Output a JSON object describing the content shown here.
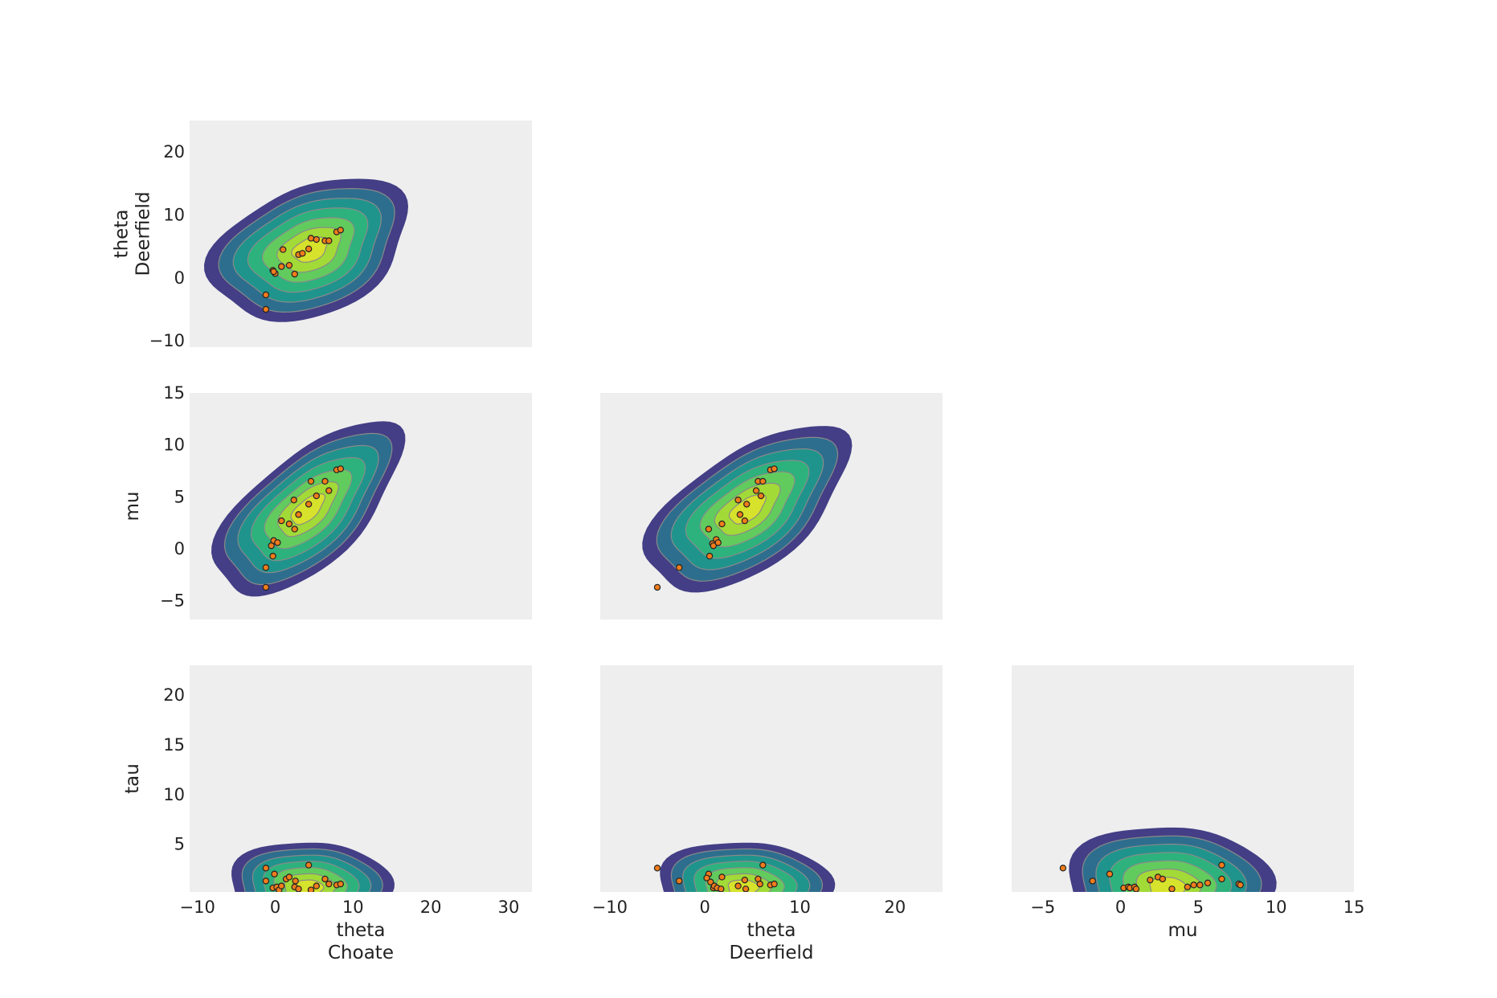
{
  "figure": {
    "background": "#ffffff",
    "panel_background": "#eeeeee",
    "point_color": "#f07c1b",
    "point_edge": "#222222",
    "contour_levels": [
      "#433e85",
      "#2d6e8e",
      "#1f948c",
      "#2db27d",
      "#62cb5e",
      "#a2da37",
      "#d6e22b"
    ],
    "contour_line_color": "#8a8a8a"
  },
  "chart_data": [
    {
      "type": "scatter",
      "panel": "theta Choate vs theta Deerfield",
      "xlabel": [
        "",
        ""
      ],
      "ylabel": [
        "theta",
        "Deerfield"
      ],
      "xlim": [
        -11,
        33
      ],
      "ylim": [
        -11,
        25
      ],
      "xticks": [],
      "yticks": [
        -10,
        0,
        10,
        20
      ],
      "ytick_labels": [
        "−10",
        "0",
        "10",
        "20"
      ],
      "kde": {
        "cx": 4.5,
        "cy": 4.5,
        "sx": 7.5,
        "sy": 6.2,
        "rot": 0.62,
        "sxMul": 0.72,
        "syMul": 0.6
      },
      "x": [
        -1.2,
        -1.2,
        -0.3,
        0.0,
        0.8,
        1.0,
        1.8,
        2.5,
        3.0,
        3.5,
        4.3,
        4.6,
        5.3,
        6.4,
        6.9,
        7.9,
        8.4,
        -0.2
      ],
      "y": [
        -5.0,
        -2.7,
        1.2,
        0.7,
        1.8,
        4.5,
        2.0,
        0.6,
        3.7,
        3.9,
        4.6,
        6.3,
        6.1,
        5.9,
        5.9,
        7.3,
        7.6,
        1.0
      ]
    },
    {
      "type": "scatter",
      "panel": "theta Choate vs mu",
      "xlabel": [
        "",
        ""
      ],
      "ylabel": [
        "mu",
        ""
      ],
      "xlim": [
        -11,
        33
      ],
      "ylim": [
        -6.8,
        15
      ],
      "xticks": [],
      "yticks": [
        -5,
        0,
        5,
        10,
        15
      ],
      "ytick_labels": [
        "−5",
        "0",
        "5",
        "10",
        "15"
      ],
      "kde": {
        "cx": 4.2,
        "cy": 3.8,
        "sx": 7.2,
        "sy": 4.0,
        "rot": 0.52,
        "sxMul": 0.72,
        "syMul": 0.55
      },
      "x": [
        -1.2,
        -1.2,
        -0.3,
        -0.5,
        -0.2,
        0.3,
        0.8,
        1.8,
        2.5,
        2.4,
        3.0,
        4.3,
        4.6,
        5.3,
        6.4,
        6.9,
        7.9,
        8.4
      ],
      "y": [
        -3.7,
        -1.8,
        -0.7,
        0.3,
        0.8,
        0.6,
        2.7,
        2.4,
        1.9,
        4.7,
        3.3,
        4.3,
        6.5,
        5.1,
        6.5,
        5.6,
        7.6,
        7.7
      ]
    },
    {
      "type": "scatter",
      "panel": "theta Deerfield vs mu",
      "xlabel": [
        "",
        ""
      ],
      "ylabel": [
        "",
        ""
      ],
      "xlim": [
        -11,
        25
      ],
      "ylim": [
        -6.8,
        15
      ],
      "xticks": [],
      "yticks": [],
      "ytick_labels": [],
      "kde": {
        "cx": 4.5,
        "cy": 3.8,
        "sx": 6.4,
        "sy": 4.0,
        "rot": 0.55,
        "sxMul": 0.72,
        "syMul": 0.55
      },
      "x": [
        -5.0,
        -2.7,
        0.5,
        0.4,
        0.8,
        0.9,
        1.2,
        1.4,
        1.8,
        3.5,
        3.7,
        4.2,
        4.4,
        5.4,
        5.6,
        5.9,
        6.1,
        6.9,
        7.3
      ],
      "y": [
        -3.7,
        -1.8,
        -0.7,
        1.9,
        0.5,
        0.3,
        0.9,
        0.6,
        2.4,
        4.7,
        3.3,
        2.7,
        4.3,
        5.6,
        6.5,
        5.1,
        6.5,
        7.6,
        7.7
      ]
    },
    {
      "type": "scatter",
      "panel": "theta Choate vs tau",
      "xlabel": [
        "theta",
        "Choate"
      ],
      "ylabel": [
        "tau",
        ""
      ],
      "xlim": [
        -11,
        33
      ],
      "ylim": [
        0.2,
        23
      ],
      "xticks": [
        -10,
        0,
        10,
        20,
        30
      ],
      "xtick_labels": [
        "−10",
        "0",
        "10",
        "20",
        "30"
      ],
      "yticks": [
        5,
        10,
        15,
        20
      ],
      "ytick_labels": [
        "5",
        "10",
        "15",
        "20"
      ],
      "kde": {
        "cx": 4.3,
        "cy": 0.6,
        "sx": 6.6,
        "sy": 2.7,
        "rot": 0.0,
        "sxMul": 0.6,
        "syMul": 0.68
      },
      "x": [
        -1.2,
        -1.2,
        -0.3,
        -0.1,
        0.2,
        0.5,
        0.8,
        1.4,
        1.8,
        2.5,
        2.6,
        3.0,
        4.3,
        4.6,
        5.3,
        6.4,
        6.9,
        7.9,
        8.4
      ],
      "y": [
        2.6,
        1.3,
        0.6,
        2.0,
        0.7,
        0.4,
        0.8,
        1.5,
        1.7,
        0.7,
        1.3,
        0.5,
        2.9,
        0.4,
        0.8,
        1.5,
        1.0,
        0.9,
        1.0
      ]
    },
    {
      "type": "scatter",
      "panel": "theta Deerfield vs tau",
      "xlabel": [
        "theta",
        "Deerfield"
      ],
      "ylabel": [
        "",
        ""
      ],
      "xlim": [
        -11,
        25
      ],
      "ylim": [
        0.2,
        23
      ],
      "xticks": [
        -10,
        0,
        10,
        20
      ],
      "xtick_labels": [
        "−10",
        "0",
        "10",
        "20"
      ],
      "yticks": [],
      "ytick_labels": [],
      "kde": {
        "cx": 4.0,
        "cy": 0.6,
        "sx": 5.8,
        "sy": 2.7,
        "rot": 0.0,
        "sxMul": 0.6,
        "syMul": 0.68
      },
      "x": [
        -5.0,
        -2.7,
        0.4,
        0.6,
        0.9,
        1.0,
        1.3,
        1.7,
        1.8,
        3.5,
        4.2,
        4.3,
        5.6,
        5.8,
        6.1,
        6.9,
        7.3,
        0.2
      ],
      "y": [
        2.6,
        1.3,
        2.0,
        1.2,
        0.6,
        0.8,
        0.6,
        0.5,
        1.7,
        0.8,
        1.4,
        0.5,
        1.5,
        1.0,
        2.9,
        0.9,
        1.0,
        1.6
      ]
    },
    {
      "type": "scatter",
      "panel": "mu vs tau",
      "xlabel": [
        "mu",
        ""
      ],
      "ylabel": [
        "",
        ""
      ],
      "xlim": [
        -7,
        15
      ],
      "ylim": [
        0.2,
        23
      ],
      "xticks": [
        -5,
        0,
        5,
        10,
        15
      ],
      "xtick_labels": [
        "−5",
        "0",
        "5",
        "10",
        "15"
      ],
      "yticks": [],
      "ytick_labels": [],
      "kde": {
        "cx": 3.0,
        "cy": 0.6,
        "sx": 4.2,
        "sy": 3.6,
        "rot": 0.0,
        "sxMul": 0.6,
        "syMul": 0.68
      },
      "x": [
        -3.7,
        -1.8,
        -0.7,
        0.2,
        0.5,
        0.6,
        0.9,
        1.0,
        1.9,
        2.4,
        2.7,
        3.3,
        4.3,
        4.7,
        5.1,
        5.6,
        6.5,
        6.5,
        7.6,
        7.7
      ],
      "y": [
        2.6,
        1.3,
        2.0,
        0.6,
        0.7,
        0.6,
        0.7,
        0.5,
        1.4,
        1.7,
        1.5,
        0.5,
        0.7,
        0.9,
        0.9,
        1.1,
        1.5,
        2.9,
        1.0,
        0.9
      ]
    }
  ]
}
